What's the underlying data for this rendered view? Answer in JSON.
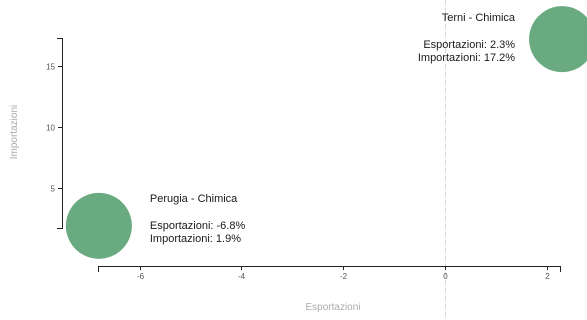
{
  "chart_data": {
    "type": "scatter",
    "xlabel": "Esportazioni",
    "ylabel": "Importazioni",
    "xticks": [
      -6,
      -4,
      -2,
      0,
      2
    ],
    "yticks": [
      5,
      10,
      15
    ],
    "xlim": [
      -6.8,
      2.3
    ],
    "ylim": [
      1.9,
      17.2
    ],
    "grid": false,
    "zero_line": "x=0 dashed",
    "bubble_color": "#6aaa80",
    "points": [
      {
        "name": "Perugia - Chimica",
        "x": -6.8,
        "y": 1.9,
        "x_text": "Esportazioni: -6.8%",
        "y_text": "Importazioni: 1.9%"
      },
      {
        "name": "Terni - Chimica",
        "x": 2.3,
        "y": 17.2,
        "x_text": "Esportazioni: 2.3%",
        "y_text": "Importazioni: 17.2%"
      }
    ]
  }
}
